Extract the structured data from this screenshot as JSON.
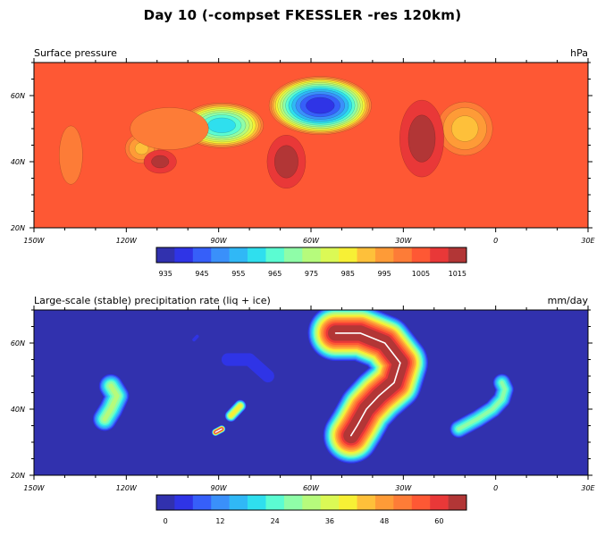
{
  "figure": {
    "title": "Day 10 (-compset FKESSLER -res 120km)"
  },
  "chart_data": [
    {
      "type": "contour-map",
      "title_left": "Surface pressure",
      "title_right": "hPa",
      "x_range": [
        -150,
        30
      ],
      "y_range": [
        20,
        70
      ],
      "xtick_values": [
        -150,
        -120,
        -90,
        -60,
        -30,
        0,
        30
      ],
      "xtick_labels": [
        "150W",
        "120W",
        "90W",
        "60W",
        "30W",
        "0",
        "30E"
      ],
      "ytick_values": [
        20,
        40,
        60
      ],
      "ytick_labels": [
        "20N",
        "40N",
        "60N"
      ],
      "background_level": 1008,
      "colorbar": {
        "levels": [
          935,
          940,
          945,
          950,
          955,
          960,
          965,
          970,
          975,
          980,
          985,
          990,
          995,
          1000,
          1005,
          1010,
          1015
        ],
        "tick_values": [
          935,
          945,
          955,
          965,
          975,
          985,
          995,
          1005,
          1015
        ],
        "tick_labels": [
          "935",
          "945",
          "955",
          "965",
          "975",
          "985",
          "995",
          "1005",
          "1015"
        ]
      },
      "features": [
        {
          "kind": "low",
          "lon": -57,
          "lat": 57,
          "rx": 17,
          "ry": 9,
          "value": 940
        },
        {
          "kind": "low",
          "lon": -89,
          "lat": 51,
          "rx": 14,
          "ry": 7,
          "value": 960
        },
        {
          "kind": "low",
          "lon": -10,
          "lat": 50,
          "rx": 10,
          "ry": 9,
          "value": 992
        },
        {
          "kind": "low",
          "lon": -115,
          "lat": 44,
          "rx": 6,
          "ry": 5,
          "value": 993
        },
        {
          "kind": "low",
          "lon": -138,
          "lat": 42,
          "rx": 6,
          "ry": 14,
          "value": 1003
        },
        {
          "kind": "low",
          "lon": -106,
          "lat": 50,
          "rx": 18,
          "ry": 9,
          "value": 1002
        },
        {
          "kind": "high",
          "lon": -24,
          "lat": 47,
          "rx": 8,
          "ry": 13,
          "value": 1018
        },
        {
          "kind": "high",
          "lon": -68,
          "lat": 40,
          "rx": 7,
          "ry": 9,
          "value": 1018
        },
        {
          "kind": "high",
          "lon": -109,
          "lat": 40,
          "rx": 6,
          "ry": 4,
          "value": 1017
        }
      ]
    },
    {
      "type": "contour-map",
      "title_left": "Large-scale (stable) precipitation rate (liq + ice)",
      "title_right": "mm/day",
      "x_range": [
        -150,
        30
      ],
      "y_range": [
        20,
        70
      ],
      "xtick_values": [
        -150,
        -120,
        -90,
        -60,
        -30,
        0,
        30
      ],
      "xtick_labels": [
        "150W",
        "120W",
        "90W",
        "60W",
        "30W",
        "0",
        "30E"
      ],
      "ytick_values": [
        20,
        40,
        60
      ],
      "ytick_labels": [
        "20N",
        "40N",
        "60N"
      ],
      "background_level": 0,
      "colorbar": {
        "levels": [
          0,
          4,
          8,
          12,
          16,
          20,
          24,
          28,
          32,
          36,
          40,
          44,
          48,
          52,
          56,
          60,
          64
        ],
        "tick_values": [
          0,
          12,
          24,
          36,
          48,
          60
        ],
        "tick_labels": [
          "0",
          "12",
          "24",
          "36",
          "48",
          "60"
        ]
      },
      "bands": [
        {
          "name": "atlantic-front",
          "peak": 72,
          "points": [
            [
              -52,
              63,
              4
            ],
            [
              -44,
              63,
              5
            ],
            [
              -36,
              60,
              5
            ],
            [
              -31,
              54,
              6
            ],
            [
              -33,
              48,
              8
            ],
            [
              -38,
              44,
              9
            ],
            [
              -42,
              40,
              7
            ],
            [
              -45,
              35,
              4
            ],
            [
              -47,
              32,
              2
            ]
          ]
        },
        {
          "name": "east-band",
          "peak": 30,
          "points": [
            [
              -12,
              34,
              2
            ],
            [
              -6,
              37,
              3
            ],
            [
              -1,
              40,
              3
            ],
            [
              2,
              43,
              3
            ],
            [
              3,
              46,
              3
            ],
            [
              2,
              48,
              2
            ]
          ]
        },
        {
          "name": "west-band",
          "peak": 34,
          "points": [
            [
              -125,
              47,
              3
            ],
            [
              -123,
              44,
              4
            ],
            [
              -125,
              40,
              3
            ],
            [
              -127,
              37,
              2
            ]
          ]
        },
        {
          "name": "arc-band",
          "peak": 8,
          "points": [
            [
              -87,
              55,
              3
            ],
            [
              -80,
              55,
              3
            ],
            [
              -74,
              50,
              2
            ]
          ]
        },
        {
          "name": "mid-blob",
          "peak": 44,
          "points": [
            [
              -83,
              41,
              2
            ],
            [
              -86,
              38,
              2
            ]
          ]
        },
        {
          "name": "hot-spot",
          "peak": 72,
          "points": [
            [
              -91,
              33,
              1.2
            ],
            [
              -89,
              34,
              1.2
            ]
          ]
        },
        {
          "name": "small-blob",
          "peak": 6,
          "points": [
            [
              -98,
              61,
              1
            ],
            [
              -97,
              62,
              1
            ]
          ]
        }
      ]
    }
  ],
  "colors": [
    "#3131ae",
    "#2f34e6",
    "#365ff9",
    "#3a90fa",
    "#30b8f6",
    "#2fdfee",
    "#5bfcd2",
    "#8ffda8",
    "#b6fb7c",
    "#dbf955",
    "#f7f035",
    "#fec03a",
    "#fe9b37",
    "#fd7c37",
    "#fe5834",
    "#e93838",
    "#b23636"
  ]
}
